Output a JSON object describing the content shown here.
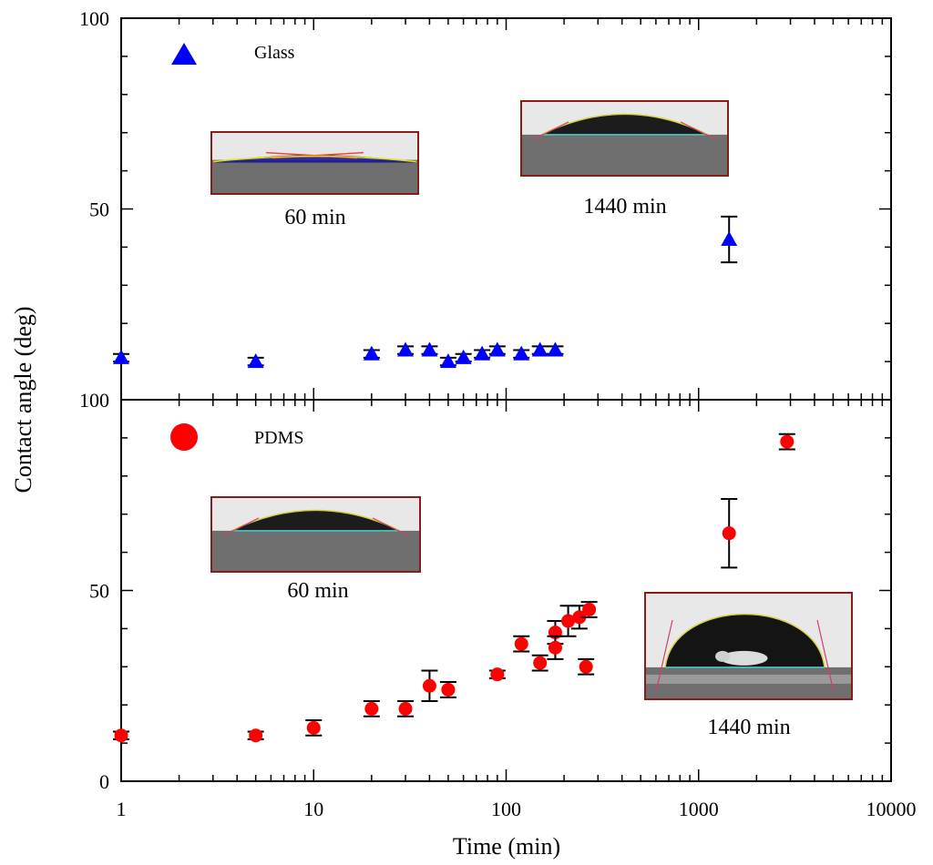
{
  "chart_data": [
    {
      "type": "scatter",
      "panel": "top",
      "xscale": "log",
      "xlim": [
        1,
        10000
      ],
      "ylim": [
        0,
        100
      ],
      "yticks": [
        50,
        100
      ],
      "ylabel": "Contact angle (deg)",
      "marker": "triangle",
      "color": "#0000ff",
      "series": [
        {
          "name": "Glass",
          "x": [
            1,
            5,
            20,
            30,
            40,
            50,
            60,
            75,
            90,
            120,
            150,
            180,
            1440
          ],
          "y": [
            11,
            10,
            12,
            13,
            13,
            10,
            11,
            12,
            13,
            12,
            13,
            13,
            42
          ],
          "err": [
            1,
            1,
            1,
            1,
            1,
            1,
            1,
            1,
            1,
            1,
            1,
            1,
            6
          ]
        }
      ],
      "insets": [
        {
          "caption": "60 min",
          "shape": "flat"
        },
        {
          "caption": "1440 min",
          "shape": "medium"
        }
      ]
    },
    {
      "type": "scatter",
      "panel": "bottom",
      "xscale": "log",
      "xlim": [
        1,
        10000
      ],
      "ylim": [
        0,
        100
      ],
      "yticks": [
        0,
        50,
        100
      ],
      "xticks": [
        1,
        10,
        100,
        1000,
        10000
      ],
      "xtick_labels": [
        "1",
        "10",
        "100",
        "1000",
        "10000"
      ],
      "xlabel": "Time (min)",
      "marker": "circle",
      "color": "#ff0000",
      "series": [
        {
          "name": "PDMS",
          "x": [
            1,
            5,
            10,
            20,
            30,
            40,
            50,
            90,
            120,
            150,
            180,
            180,
            210,
            240,
            260,
            270,
            1440,
            2880
          ],
          "y": [
            12,
            12,
            14,
            19,
            19,
            25,
            24,
            28,
            36,
            31,
            39,
            35,
            42,
            43,
            30,
            45,
            65,
            89
          ],
          "err": [
            1,
            1,
            2,
            2,
            2,
            4,
            2,
            1,
            2,
            2,
            3,
            3,
            4,
            3,
            2,
            2,
            9,
            2
          ]
        }
      ],
      "insets": [
        {
          "caption": "60 min",
          "shape": "medium"
        },
        {
          "caption": "1440 min",
          "shape": "tall"
        }
      ]
    }
  ]
}
